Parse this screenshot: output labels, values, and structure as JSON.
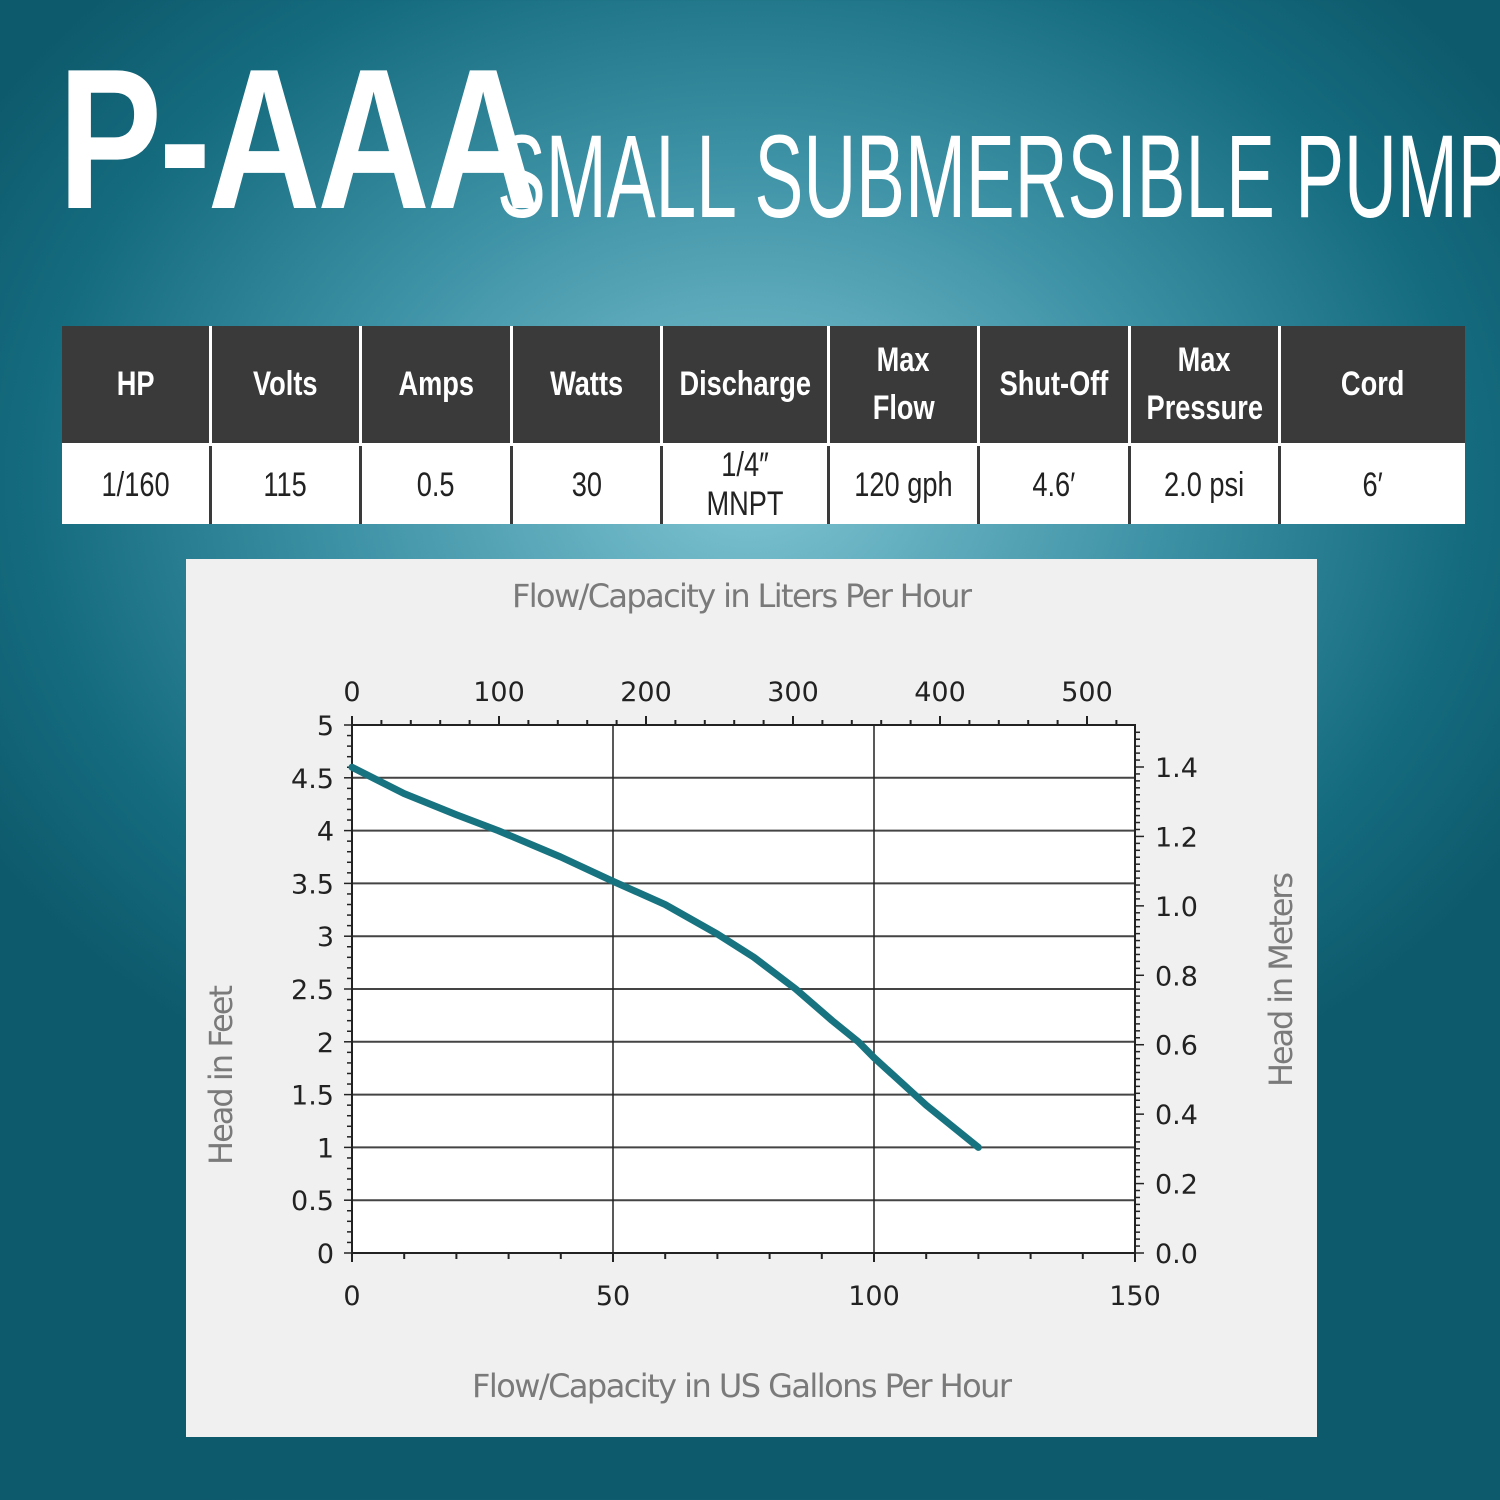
{
  "header": {
    "model": "P-AAA",
    "description": "SMALL SUBMERSIBLE PUMP"
  },
  "specs": {
    "headers": [
      [
        "HP"
      ],
      [
        "Volts"
      ],
      [
        "Amps"
      ],
      [
        "Watts"
      ],
      [
        "Discharge"
      ],
      [
        "Max",
        "Flow"
      ],
      [
        "Shut-Off"
      ],
      [
        "Max",
        "Pressure"
      ],
      [
        "Cord"
      ]
    ],
    "values": [
      "1/160",
      "115",
      "0.5",
      "30",
      "1/4″ MNPT",
      "120 gph",
      "4.6′",
      "2.0 psi",
      "6′"
    ]
  },
  "colors": {
    "curve": "#17737f",
    "header_bg": "#3a3a3a"
  },
  "chart_data": {
    "type": "line",
    "title_top": "Flow/Capacity in Liters Per Hour",
    "xlabel": "Flow/Capacity in US Gallons Per Hour",
    "ylabel": "Head in Feet",
    "ylabel_right": "Head in Meters",
    "xlim": [
      0,
      150
    ],
    "ylim": [
      0,
      5
    ],
    "x_ticks": [
      "0",
      "50",
      "100",
      "150"
    ],
    "y_ticks": [
      "0",
      "0.5",
      "1",
      "1.5",
      "2",
      "2.5",
      "3",
      "3.5",
      "4",
      "4.5",
      "5"
    ],
    "top_ticks": [
      "0",
      "100",
      "200",
      "300",
      "400",
      "500"
    ],
    "right_ticks": [
      "0.0",
      "0.2",
      "0.4",
      "0.6",
      "0.8",
      "1.0",
      "1.2",
      "1.4"
    ],
    "series": [
      {
        "name": "P-AAA",
        "x": [
          0,
          10,
          20,
          28,
          40,
          50,
          60,
          70,
          77,
          85,
          92,
          97,
          100,
          110,
          120
        ],
        "y": [
          4.6,
          4.35,
          4.15,
          4.0,
          3.75,
          3.52,
          3.3,
          3.02,
          2.8,
          2.5,
          2.2,
          2.0,
          1.85,
          1.4,
          1.0
        ]
      }
    ]
  }
}
